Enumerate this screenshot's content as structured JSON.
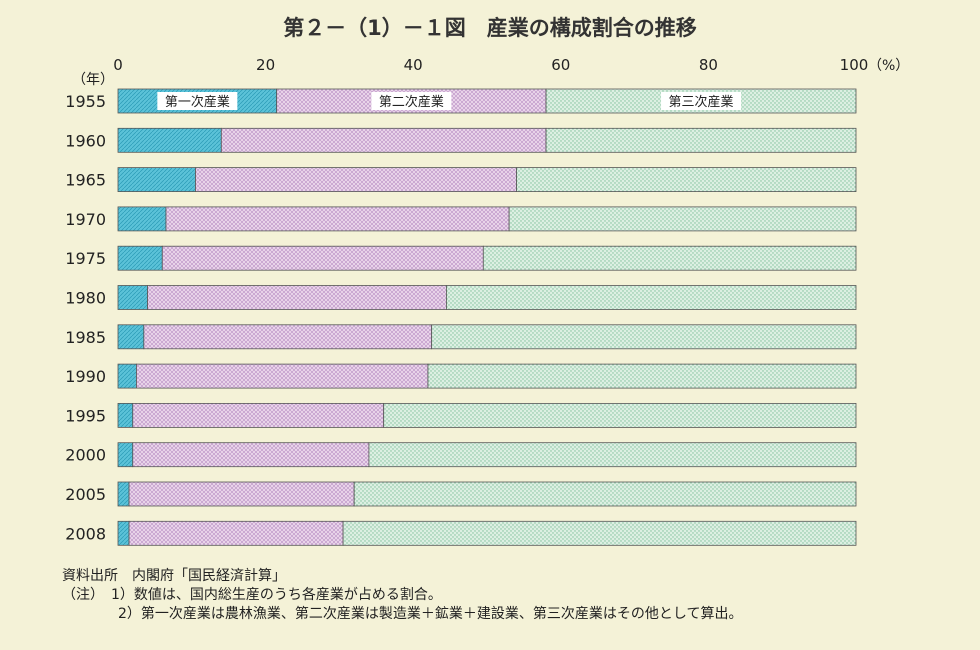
{
  "chart_data": {
    "type": "bar",
    "orientation": "horizontal",
    "stacked": true,
    "title": "第２－（1）－１図　産業の構成割合の推移",
    "xlabel": "(%)",
    "ylabel": "（年）",
    "xlim": [
      0,
      100
    ],
    "xticks": [
      0,
      20,
      40,
      60,
      80,
      100
    ],
    "x_unit_label": "（%）",
    "categories": [
      "1955",
      "1960",
      "1965",
      "1970",
      "1975",
      "1980",
      "1985",
      "1990",
      "1995",
      "2000",
      "2005",
      "2008"
    ],
    "series": [
      {
        "name": "第一次産業",
        "color": "#5bc2d8",
        "values": [
          21.5,
          14.0,
          10.5,
          6.5,
          6.0,
          4.0,
          3.5,
          2.5,
          2.0,
          2.0,
          1.5,
          1.5
        ]
      },
      {
        "name": "第二次産業",
        "color": "#e3c8e4",
        "values": [
          36.5,
          44.0,
          43.5,
          46.5,
          43.5,
          40.5,
          39.0,
          39.5,
          34.0,
          32.0,
          30.5,
          29.0
        ]
      },
      {
        "name": "第三次産業",
        "color": "#cfe8d8",
        "values": [
          42.0,
          42.0,
          46.0,
          47.0,
          50.5,
          55.5,
          57.5,
          58.0,
          64.0,
          66.0,
          68.0,
          69.5
        ]
      }
    ]
  },
  "source": "資料出所　内閣府「国民経済計算」",
  "notes": [
    "（注）　1）数値は、国内総生産のうち各産業が占める割合。",
    "　　　　2）第一次産業は農林漁業、第二次産業は製造業＋鉱業＋建設業、第三次産業はその他として算出。"
  ]
}
